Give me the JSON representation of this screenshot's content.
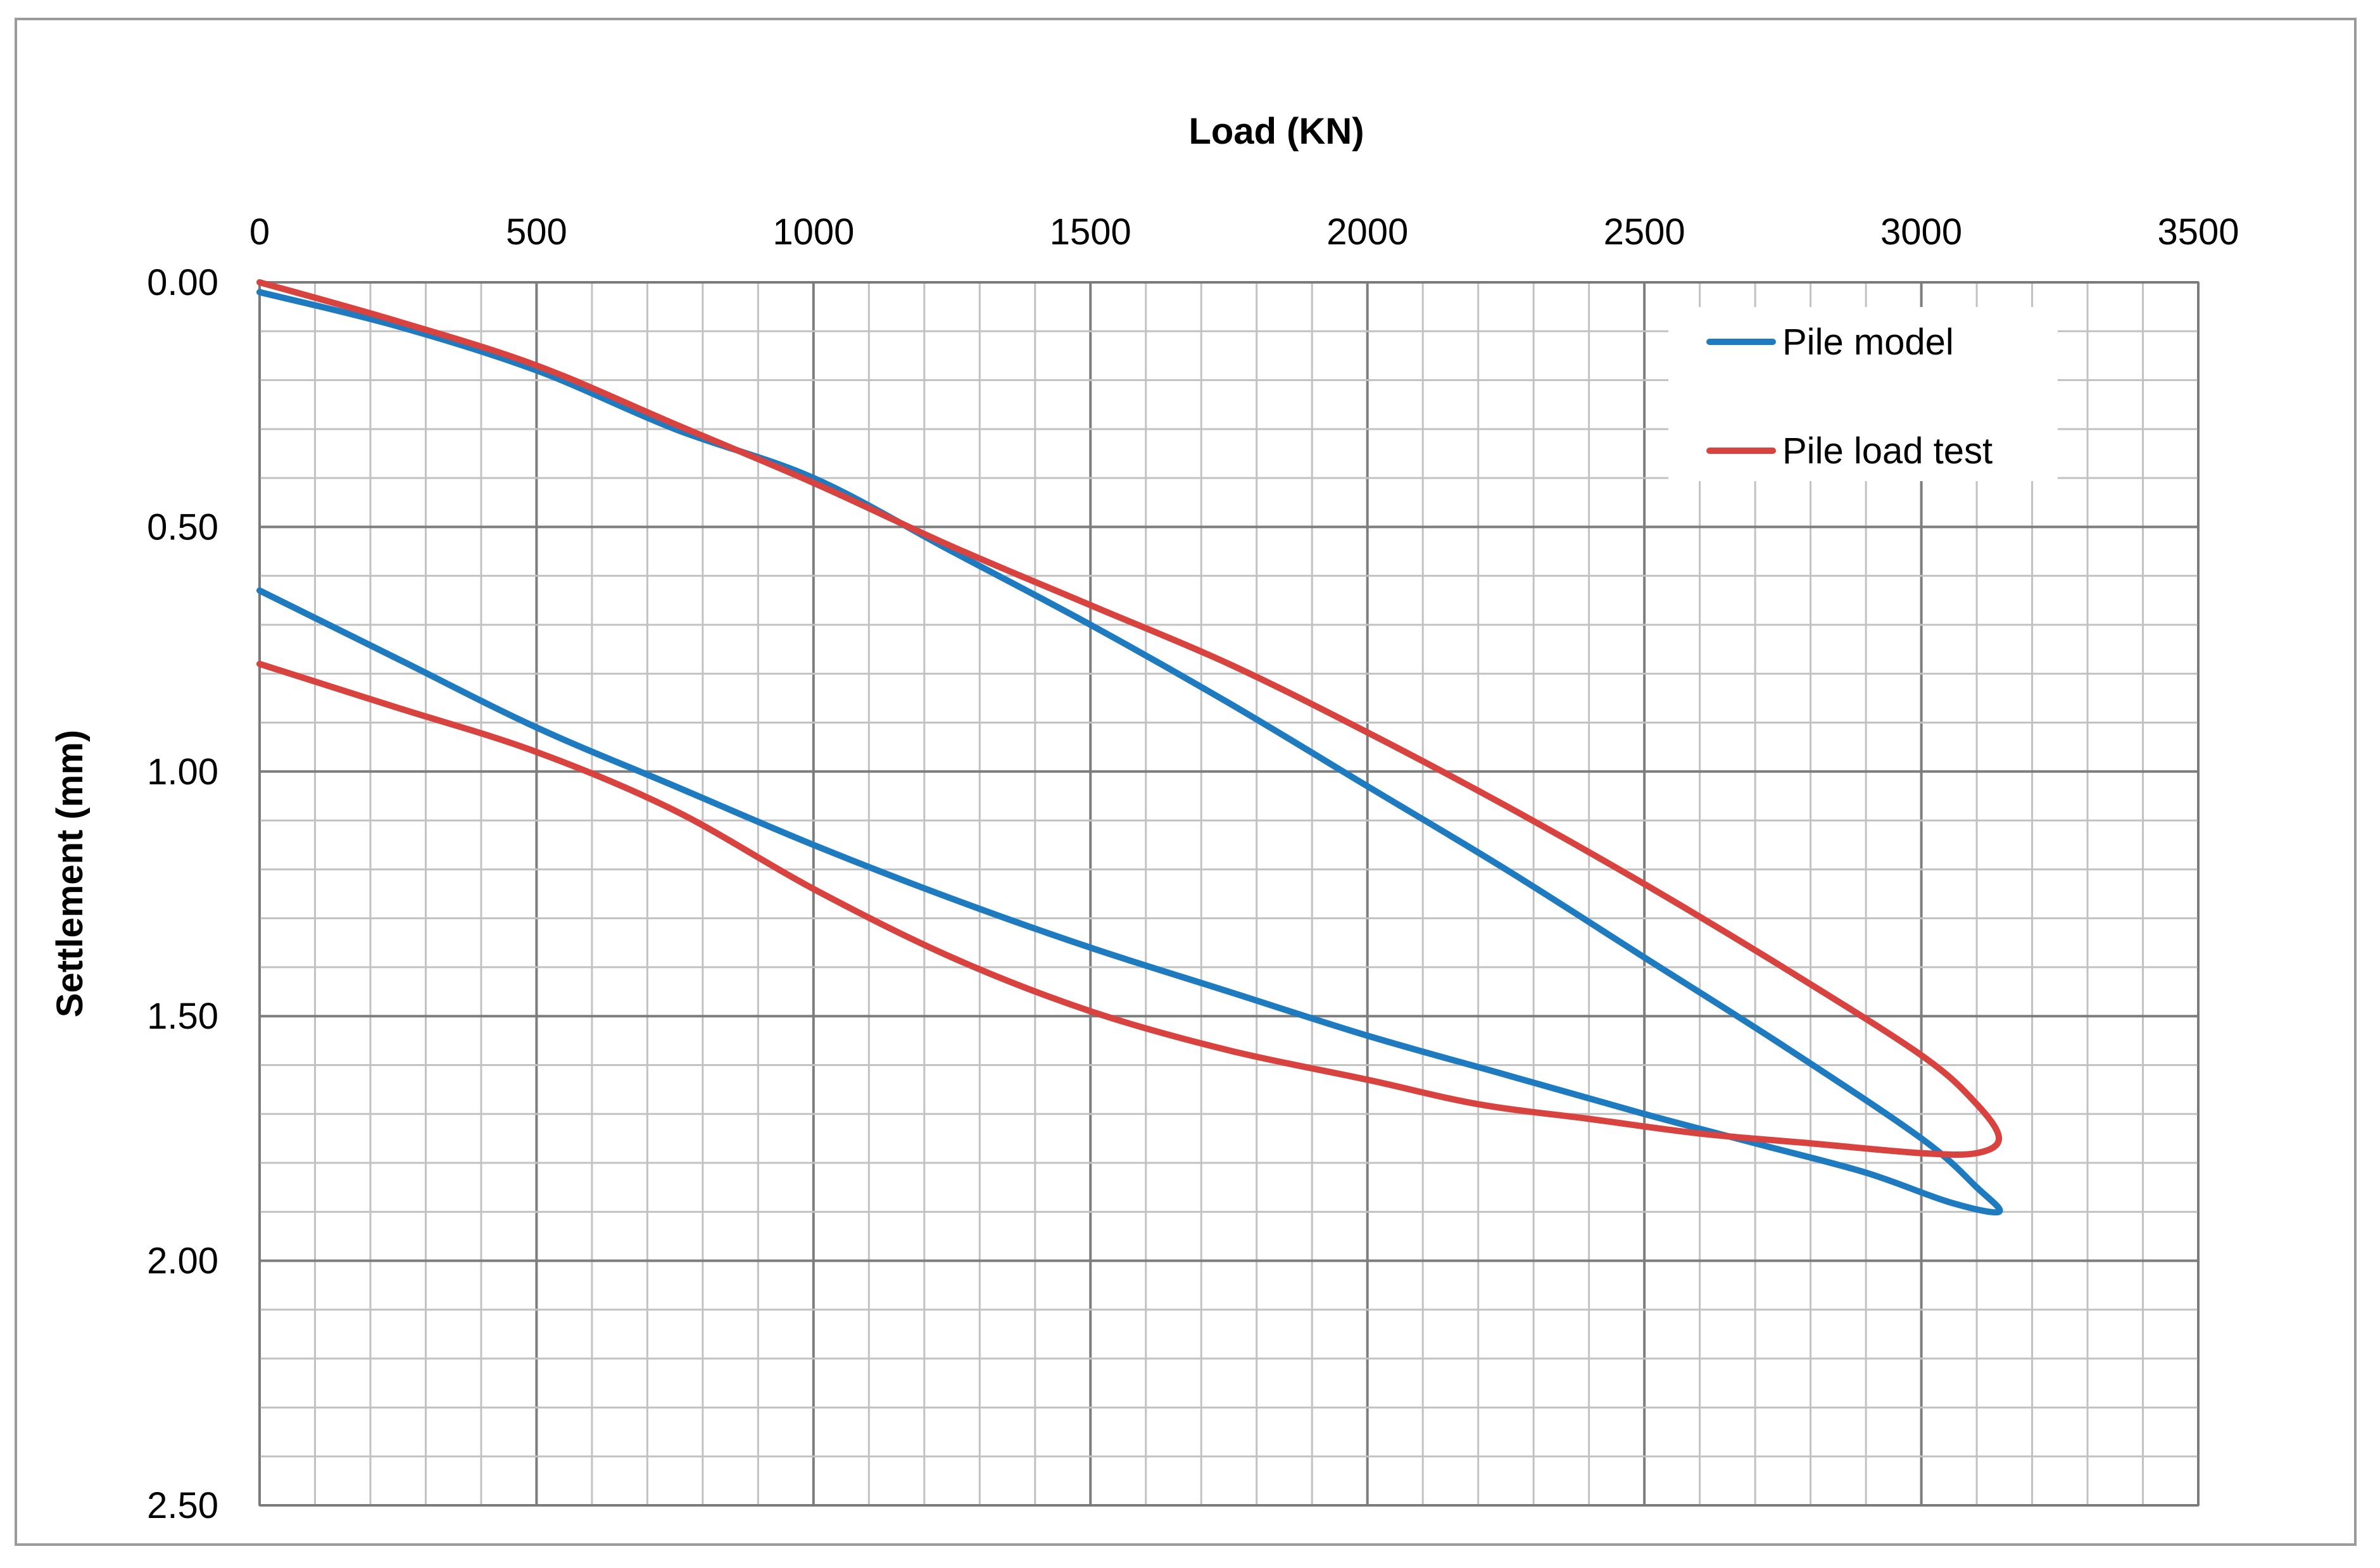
{
  "chart_data": {
    "type": "line",
    "title": "",
    "xlabel": "Load (KN)",
    "ylabel": "Settlement (mm)",
    "x_axis_position": "top",
    "y_axis_inverted": true,
    "xlim": [
      0,
      3500
    ],
    "ylim": [
      0,
      2.5
    ],
    "x_ticks": [
      "0",
      "500",
      "1000",
      "1500",
      "2000",
      "2500",
      "3000",
      "3500"
    ],
    "y_ticks": [
      "0.00",
      "0.50",
      "1.00",
      "1.50",
      "2.00",
      "2.50"
    ],
    "x_minor_step": 100,
    "y_minor_step": 0.1,
    "grid": true,
    "legend_position": "top-right",
    "series": [
      {
        "name": "Pile model",
        "color": "#1f7bbf",
        "points": [
          [
            0,
            0.02
          ],
          [
            250,
            0.09
          ],
          [
            500,
            0.18
          ],
          [
            750,
            0.3
          ],
          [
            1000,
            0.4
          ],
          [
            1250,
            0.55
          ],
          [
            1500,
            0.7
          ],
          [
            1750,
            0.86
          ],
          [
            2000,
            1.03
          ],
          [
            2250,
            1.2
          ],
          [
            2500,
            1.38
          ],
          [
            2750,
            1.56
          ],
          [
            3000,
            1.75
          ],
          [
            3100,
            1.85
          ],
          [
            3140,
            1.9
          ],
          [
            3050,
            1.88
          ],
          [
            2900,
            1.82
          ],
          [
            2700,
            1.76
          ],
          [
            2500,
            1.7
          ],
          [
            2250,
            1.62
          ],
          [
            2000,
            1.54
          ],
          [
            1750,
            1.45
          ],
          [
            1500,
            1.36
          ],
          [
            1250,
            1.26
          ],
          [
            1000,
            1.15
          ],
          [
            750,
            1.03
          ],
          [
            500,
            0.91
          ],
          [
            250,
            0.77
          ],
          [
            0,
            0.63
          ]
        ]
      },
      {
        "name": "Pile load test",
        "color": "#d9433f",
        "points": [
          [
            0,
            0.0
          ],
          [
            250,
            0.08
          ],
          [
            500,
            0.17
          ],
          [
            750,
            0.29
          ],
          [
            1000,
            0.41
          ],
          [
            1250,
            0.54
          ],
          [
            1500,
            0.66
          ],
          [
            1750,
            0.78
          ],
          [
            2000,
            0.92
          ],
          [
            2250,
            1.07
          ],
          [
            2500,
            1.23
          ],
          [
            2750,
            1.4
          ],
          [
            3000,
            1.58
          ],
          [
            3100,
            1.68
          ],
          [
            3140,
            1.75
          ],
          [
            3100,
            1.78
          ],
          [
            3000,
            1.78
          ],
          [
            2800,
            1.76
          ],
          [
            2600,
            1.74
          ],
          [
            2400,
            1.71
          ],
          [
            2200,
            1.68
          ],
          [
            2000,
            1.63
          ],
          [
            1750,
            1.57
          ],
          [
            1500,
            1.49
          ],
          [
            1250,
            1.38
          ],
          [
            1000,
            1.24
          ],
          [
            750,
            1.08
          ],
          [
            500,
            0.96
          ],
          [
            250,
            0.87
          ],
          [
            0,
            0.78
          ]
        ]
      }
    ]
  }
}
